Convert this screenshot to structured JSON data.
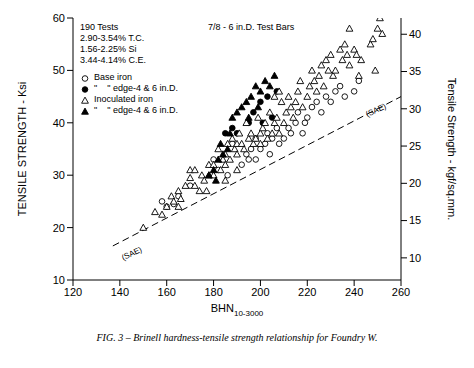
{
  "chart_data": {
    "type": "scatter",
    "caption": "FIG. 3 – Brinell hardness-tensile strength relationship for Foundry W.",
    "notes": [
      "190 Tests",
      "2.90-3.54% T.C.",
      "1.56-2.25% Si",
      "3.44-4.14% C.E."
    ],
    "subtitle": "7/8 - 6 in.D. Test Bars",
    "x_label": "BHN",
    "x_label_sub": "10-3000",
    "y_label": "TENSILE STRENGTH - Ksi",
    "y2_label": "Tensile Strength - kgf/sq.mm.",
    "xlim": [
      120,
      260
    ],
    "xticks": [
      120,
      140,
      160,
      180,
      200,
      220,
      240,
      260
    ],
    "ylim": [
      10,
      60
    ],
    "yticks": [
      10,
      20,
      30,
      40,
      50,
      60
    ],
    "y2lim": [
      7.03,
      42.18
    ],
    "y2ticks": [
      10,
      15,
      20,
      25,
      30,
      35,
      40
    ],
    "grid": false,
    "legend": "upper left",
    "series": [
      {
        "name": "Base iron",
        "color": "#000000",
        "marker": "open_circle",
        "x": [
          158,
          160,
          163,
          165,
          170,
          180,
          182,
          186,
          188,
          192,
          194,
          196,
          198,
          200,
          202,
          204,
          205,
          207,
          208,
          210,
          212,
          213,
          215,
          216,
          218,
          220,
          222,
          224,
          226,
          228,
          230,
          232,
          234,
          236,
          240,
          242,
          198,
          203,
          195,
          219
        ],
        "values": [
          25,
          24,
          24.5,
          26,
          28,
          33,
          31,
          30,
          36,
          32,
          34,
          35,
          33,
          35,
          36,
          34,
          37,
          39,
          36,
          37,
          39,
          38,
          40,
          42,
          38,
          41,
          43,
          44,
          42,
          45,
          44,
          46,
          47,
          45,
          46,
          48,
          37,
          38,
          33,
          40
        ]
      },
      {
        "name": "\"    \" edge-4 & 6 in.D.",
        "color": "#000000",
        "marker": "circle",
        "x": [
          185,
          188,
          190,
          195,
          197,
          200,
          203,
          205,
          207,
          201
        ],
        "values": [
          38,
          39,
          38,
          40,
          42,
          44,
          45,
          41,
          46,
          40
        ]
      },
      {
        "name": "Inoculated iron",
        "color": "#000000",
        "marker": "open_triangle",
        "x": [
          150,
          155,
          158,
          160,
          162,
          163,
          165,
          166,
          168,
          170,
          170,
          172,
          172,
          174,
          175,
          176,
          178,
          178,
          180,
          180,
          182,
          183,
          184,
          185,
          185,
          186,
          187,
          188,
          189,
          190,
          190,
          191,
          192,
          193,
          194,
          195,
          196,
          197,
          198,
          199,
          200,
          200,
          201,
          202,
          203,
          204,
          205,
          206,
          207,
          208,
          209,
          210,
          211,
          212,
          213,
          214,
          215,
          216,
          217,
          218,
          220,
          221,
          222,
          223,
          224,
          225,
          226,
          227,
          228,
          229,
          230,
          231,
          232,
          234,
          235,
          236,
          237,
          238,
          238,
          240,
          241,
          242,
          243,
          247,
          248,
          250,
          251,
          252,
          249,
          206,
          208,
          190,
          185,
          177,
          165
        ],
        "values": [
          20,
          23,
          22.5,
          24,
          26,
          25,
          27,
          25.5,
          28,
          29.5,
          31,
          31,
          28,
          27,
          30,
          29,
          32,
          30,
          32,
          30,
          35,
          31,
          33,
          34,
          32,
          36,
          33,
          37,
          35,
          34,
          36,
          38,
          36,
          35,
          40,
          37,
          38,
          36,
          37,
          41,
          38,
          36,
          39,
          40,
          37,
          42,
          38,
          40,
          41,
          38,
          44,
          40,
          42,
          45,
          43,
          41,
          44,
          46,
          48,
          43,
          45,
          47,
          50,
          48,
          46,
          49,
          51,
          47,
          52,
          50,
          53,
          49,
          50,
          54,
          52,
          55,
          53,
          58,
          51,
          54,
          53,
          49,
          52,
          55,
          56,
          58,
          60,
          57,
          50,
          45,
          46,
          31,
          29,
          27,
          24
        ]
      },
      {
        "name": "\"    \" edge-4 & 6 in.D.",
        "color": "#000000",
        "marker": "triangle",
        "x": [
          178,
          180,
          182,
          184,
          186,
          188,
          190,
          192,
          194,
          196,
          198,
          200,
          202,
          204,
          206,
          195,
          199,
          187,
          183,
          181
        ],
        "values": [
          30,
          31,
          33,
          34,
          35,
          41,
          42,
          43,
          44,
          45,
          47,
          46,
          48,
          47,
          49,
          41,
          43,
          38,
          36,
          29
        ]
      },
      {
        "name": "(SAE)",
        "type": "line",
        "line_style": "dashed",
        "color": "#000000",
        "x": [
          137,
          260
        ],
        "values": [
          16.5,
          45
        ]
      }
    ]
  }
}
